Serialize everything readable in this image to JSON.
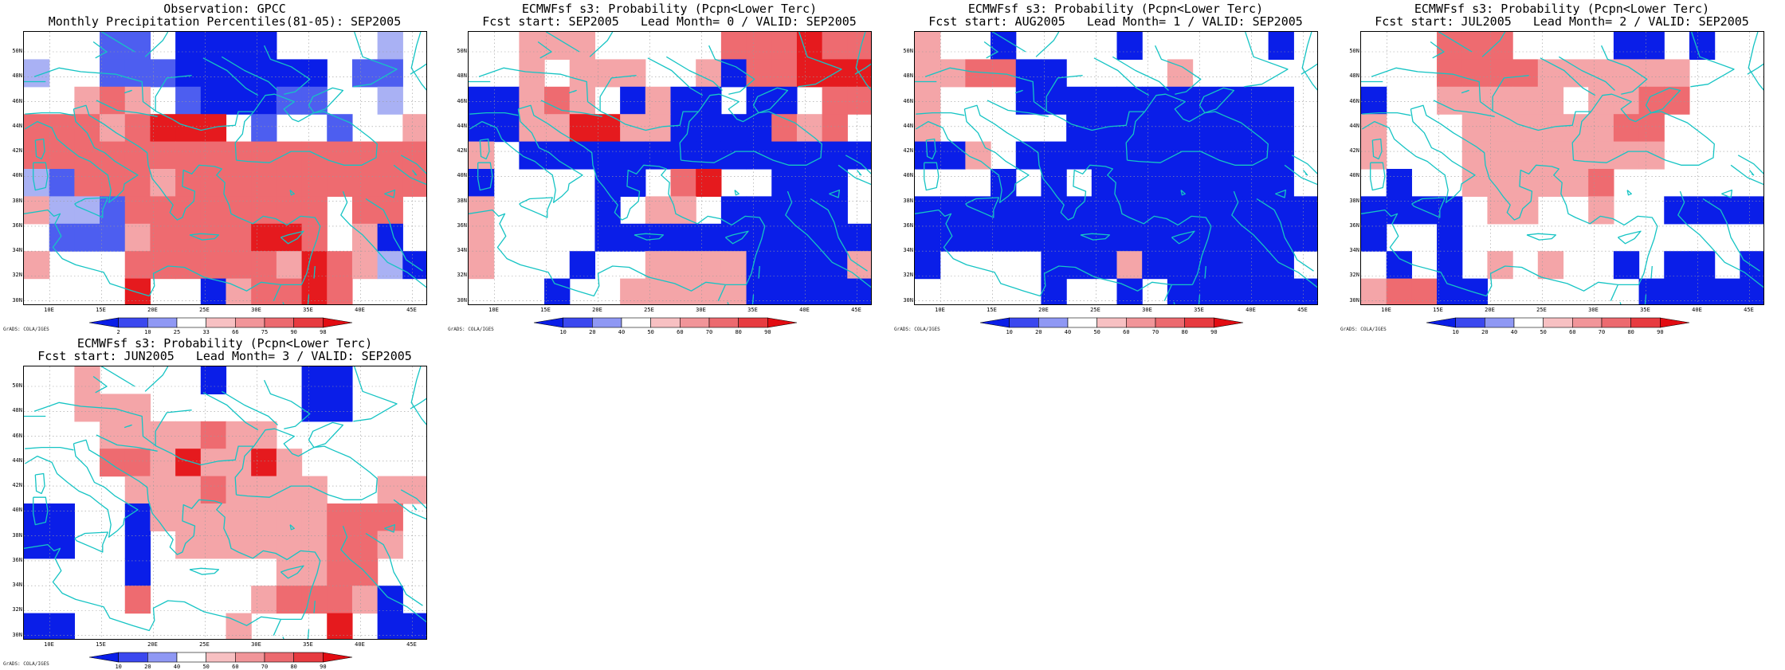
{
  "panels": [
    {
      "id": "obs",
      "title_line1": "Observation: GPCC",
      "title_line2": "Monthly Precipitation Percentiles(81-05): SEP2005",
      "colorbar_labels": [
        "2",
        "10",
        "25",
        "33",
        "66",
        "75",
        "90",
        "98"
      ],
      "grid": [
        "w",
        "w",
        "w",
        "b",
        "b",
        "w",
        "D",
        "D",
        "D",
        "D",
        "w",
        "w",
        "w",
        "w",
        "m",
        "M",
        "m",
        "w",
        "w",
        "b",
        "b",
        "b",
        "D",
        "D",
        "D",
        "D",
        "D",
        "D",
        "w",
        "b",
        "b",
        "w",
        "M",
        "w",
        "p",
        "r",
        "p",
        "w",
        "b",
        "D",
        "D",
        "D",
        "b",
        "b",
        "w",
        "M",
        "m",
        "w",
        "r",
        "r",
        "r",
        "p",
        "r",
        "R",
        "R",
        "R",
        "w",
        "b",
        "w",
        "w",
        "b",
        "w",
        "w",
        "p",
        "r",
        "r",
        "r",
        "r",
        "r",
        "r",
        "r",
        "r",
        "r",
        "r",
        "r",
        "r",
        "r",
        "r",
        "r",
        "r",
        "m",
        "b",
        "r",
        "r",
        "r",
        "p",
        "r",
        "r",
        "r",
        "r",
        "r",
        "r",
        "r",
        "r",
        "r",
        "r",
        "p",
        "m",
        "m",
        "b",
        "r",
        "r",
        "r",
        "r",
        "r",
        "r",
        "r",
        "r",
        "w",
        "r",
        "r",
        "w",
        "w",
        "b",
        "b",
        "b",
        "p",
        "r",
        "r",
        "r",
        "r",
        "R",
        "R",
        "r",
        "w",
        "p",
        "D",
        "w",
        "p",
        "w",
        "w",
        "w",
        "r",
        "r",
        "r",
        "r",
        "r",
        "r",
        "p",
        "R",
        "r",
        "p",
        "m",
        "D",
        "w",
        "w",
        "w",
        "w",
        "R",
        "w",
        "w",
        "D",
        "p",
        "r",
        "r",
        "R",
        "r",
        "w",
        "w",
        "w"
      ]
    },
    {
      "id": "lead0",
      "title_line1": "ECMWFsf s3: Probability (Pcpn<Lower Terc)",
      "title_line2": "Fcst start: SEP2005   Lead Month= 0 / VALID: SEP2005",
      "colorbar_labels": [
        "10",
        "20",
        "40",
        "50",
        "60",
        "70",
        "80",
        "90"
      ],
      "grid": [
        "w",
        "w",
        "p",
        "p",
        "p",
        "w",
        "w",
        "w",
        "w",
        "w",
        "r",
        "r",
        "r",
        "R",
        "r",
        "r",
        "w",
        "w",
        "p",
        "w",
        "p",
        "p",
        "p",
        "w",
        "w",
        "p",
        "D",
        "r",
        "r",
        "R",
        "R",
        "R",
        "D",
        "D",
        "p",
        "r",
        "p",
        "w",
        "D",
        "p",
        "D",
        "D",
        "w",
        "D",
        "D",
        "w",
        "r",
        "r",
        "D",
        "D",
        "p",
        "p",
        "R",
        "R",
        "p",
        "p",
        "D",
        "D",
        "D",
        "D",
        "r",
        "p",
        "r",
        "w",
        "p",
        "w",
        "D",
        "D",
        "D",
        "D",
        "D",
        "D",
        "D",
        "D",
        "D",
        "D",
        "D",
        "D",
        "D",
        "D",
        "D",
        "w",
        "w",
        "w",
        "w",
        "D",
        "D",
        "w",
        "r",
        "R",
        "w",
        "w",
        "D",
        "D",
        "D",
        "w",
        "p",
        "w",
        "w",
        "w",
        "w",
        "D",
        "w",
        "p",
        "p",
        "w",
        "D",
        "D",
        "D",
        "D",
        "D",
        "w",
        "p",
        "w",
        "w",
        "w",
        "w",
        "D",
        "D",
        "D",
        "D",
        "D",
        "D",
        "D",
        "D",
        "D",
        "D",
        "D",
        "p",
        "w",
        "w",
        "w",
        "D",
        "w",
        "w",
        "p",
        "p",
        "p",
        "p",
        "D",
        "D",
        "D",
        "D",
        "p",
        "w",
        "w",
        "w",
        "D",
        "w",
        "w",
        "p",
        "p",
        "p",
        "p",
        "p",
        "D",
        "D",
        "D",
        "D",
        "D"
      ]
    },
    {
      "id": "lead1",
      "title_line1": "ECMWFsf s3: Probability (Pcpn<Lower Terc)",
      "title_line2": "Fcst start: AUG2005   Lead Month= 1 / VALID: SEP2005",
      "colorbar_labels": [
        "10",
        "20",
        "40",
        "50",
        "60",
        "70",
        "80",
        "90"
      ],
      "grid": [
        "p",
        "w",
        "w",
        "D",
        "w",
        "w",
        "w",
        "w",
        "D",
        "w",
        "w",
        "w",
        "w",
        "w",
        "D",
        "w",
        "p",
        "p",
        "r",
        "r",
        "D",
        "D",
        "w",
        "w",
        "w",
        "w",
        "p",
        "w",
        "w",
        "w",
        "w",
        "w",
        "p",
        "w",
        "w",
        "w",
        "D",
        "D",
        "D",
        "D",
        "D",
        "D",
        "D",
        "D",
        "D",
        "D",
        "D",
        "w",
        "p",
        "w",
        "w",
        "w",
        "w",
        "w",
        "D",
        "D",
        "D",
        "D",
        "D",
        "D",
        "D",
        "D",
        "D",
        "w",
        "D",
        "D",
        "p",
        "w",
        "D",
        "D",
        "D",
        "D",
        "D",
        "D",
        "D",
        "D",
        "D",
        "D",
        "D",
        "w",
        "w",
        "w",
        "w",
        "D",
        "w",
        "D",
        "w",
        "D",
        "D",
        "D",
        "D",
        "D",
        "D",
        "D",
        "D",
        "w",
        "D",
        "D",
        "D",
        "D",
        "D",
        "D",
        "D",
        "D",
        "D",
        "D",
        "D",
        "D",
        "D",
        "D",
        "D",
        "D",
        "D",
        "D",
        "D",
        "D",
        "D",
        "D",
        "D",
        "D",
        "D",
        "D",
        "D",
        "D",
        "D",
        "D",
        "D",
        "D",
        "D",
        "w",
        "w",
        "w",
        "w",
        "D",
        "D",
        "D",
        "p",
        "D",
        "D",
        "D",
        "D",
        "D",
        "D",
        "w",
        "w",
        "w",
        "w",
        "w",
        "w",
        "D",
        "w",
        "w",
        "D",
        "w",
        "D",
        "D",
        "D",
        "D",
        "D",
        "D"
      ]
    },
    {
      "id": "lead2",
      "title_line1": "ECMWFsf s3: Probability (Pcpn<Lower Terc)",
      "title_line2": "Fcst start: JUL2005   Lead Month= 2 / VALID: SEP2005",
      "colorbar_labels": [
        "10",
        "20",
        "40",
        "50",
        "60",
        "70",
        "80",
        "90"
      ],
      "grid": [
        "w",
        "w",
        "w",
        "r",
        "r",
        "r",
        "w",
        "w",
        "w",
        "w",
        "D",
        "D",
        "w",
        "D",
        "w",
        "w",
        "w",
        "w",
        "w",
        "r",
        "r",
        "r",
        "r",
        "p",
        "p",
        "p",
        "p",
        "p",
        "p",
        "w",
        "w",
        "w",
        "D",
        "w",
        "w",
        "p",
        "p",
        "p",
        "p",
        "p",
        "w",
        "p",
        "p",
        "r",
        "r",
        "w",
        "w",
        "w",
        "p",
        "w",
        "w",
        "w",
        "p",
        "p",
        "p",
        "p",
        "p",
        "p",
        "r",
        "r",
        "w",
        "w",
        "w",
        "w",
        "p",
        "w",
        "w",
        "w",
        "p",
        "p",
        "p",
        "p",
        "p",
        "p",
        "p",
        "p",
        "w",
        "w",
        "w",
        "w",
        "w",
        "D",
        "w",
        "w",
        "p",
        "p",
        "p",
        "p",
        "p",
        "r",
        "w",
        "w",
        "w",
        "w",
        "w",
        "w",
        "D",
        "D",
        "D",
        "D",
        "w",
        "p",
        "p",
        "w",
        "w",
        "p",
        "w",
        "w",
        "D",
        "D",
        "D",
        "D",
        "D",
        "w",
        "w",
        "D",
        "w",
        "w",
        "w",
        "w",
        "w",
        "w",
        "w",
        "w",
        "w",
        "w",
        "w",
        "w",
        "w",
        "D",
        "w",
        "D",
        "w",
        "p",
        "w",
        "p",
        "w",
        "w",
        "D",
        "w",
        "D",
        "D",
        "w",
        "D",
        "p",
        "r",
        "r",
        "D",
        "D",
        "w",
        "w",
        "w",
        "w",
        "w",
        "w",
        "D",
        "D",
        "D",
        "D",
        "D"
      ]
    },
    {
      "id": "lead3",
      "title_line1": "ECMWFsf s3: Probability (Pcpn<Lower Terc)",
      "title_line2": "Fcst start: JUN2005   Lead Month= 3 / VALID: SEP2005",
      "colorbar_labels": [
        "10",
        "20",
        "40",
        "50",
        "60",
        "70",
        "80",
        "90"
      ],
      "grid": [
        "w",
        "w",
        "p",
        "w",
        "w",
        "w",
        "w",
        "D",
        "w",
        "w",
        "w",
        "D",
        "D",
        "w",
        "w",
        "w",
        "w",
        "w",
        "p",
        "p",
        "p",
        "w",
        "w",
        "w",
        "w",
        "w",
        "w",
        "D",
        "D",
        "w",
        "w",
        "w",
        "w",
        "w",
        "w",
        "p",
        "p",
        "p",
        "p",
        "r",
        "p",
        "p",
        "w",
        "w",
        "w",
        "w",
        "w",
        "w",
        "w",
        "w",
        "w",
        "r",
        "r",
        "p",
        "R",
        "p",
        "p",
        "R",
        "p",
        "w",
        "w",
        "w",
        "w",
        "w",
        "w",
        "w",
        "w",
        "w",
        "p",
        "p",
        "p",
        "r",
        "p",
        "p",
        "p",
        "p",
        "w",
        "w",
        "p",
        "p",
        "D",
        "D",
        "w",
        "w",
        "D",
        "p",
        "p",
        "p",
        "p",
        "p",
        "p",
        "p",
        "r",
        "r",
        "r",
        "w",
        "D",
        "D",
        "w",
        "w",
        "D",
        "w",
        "p",
        "p",
        "p",
        "p",
        "p",
        "p",
        "r",
        "r",
        "p",
        "w",
        "w",
        "w",
        "w",
        "w",
        "D",
        "w",
        "w",
        "w",
        "w",
        "w",
        "p",
        "p",
        "r",
        "r",
        "w",
        "w",
        "w",
        "w",
        "w",
        "w",
        "r",
        "w",
        "w",
        "w",
        "w",
        "p",
        "r",
        "r",
        "r",
        "p",
        "D",
        "w",
        "D",
        "D",
        "w",
        "w",
        "w",
        "w",
        "w",
        "w",
        "p",
        "w",
        "w",
        "w",
        "R",
        "w",
        "D",
        "D"
      ]
    }
  ],
  "axes": {
    "lat_labels": [
      "50N",
      "48N",
      "46N",
      "44N",
      "42N",
      "40N",
      "38N",
      "36N",
      "34N",
      "32N",
      "30N"
    ],
    "lon_labels": [
      "10E",
      "15E",
      "20E",
      "25E",
      "30E",
      "35E",
      "40E",
      "45E"
    ]
  },
  "footer": "GrADS: COLA/IGES",
  "colors": {
    "D": "#0a1ee8",
    "b": "#4d5ef0",
    "m": "#a9b1f4",
    "w": "#ffffff",
    "p": "#f4a5a8",
    "r": "#ee6b70",
    "R": "#e51a1e",
    "coast": "#16c4c4",
    "gridline": "#9a9a9a"
  },
  "colorbar_colors": [
    "#0a1ee8",
    "#3b48ef",
    "#8f98f4",
    "#ffffff",
    "#f7c0c2",
    "#f19599",
    "#ec6a6f",
    "#e73b40",
    "#e20c12"
  ]
}
